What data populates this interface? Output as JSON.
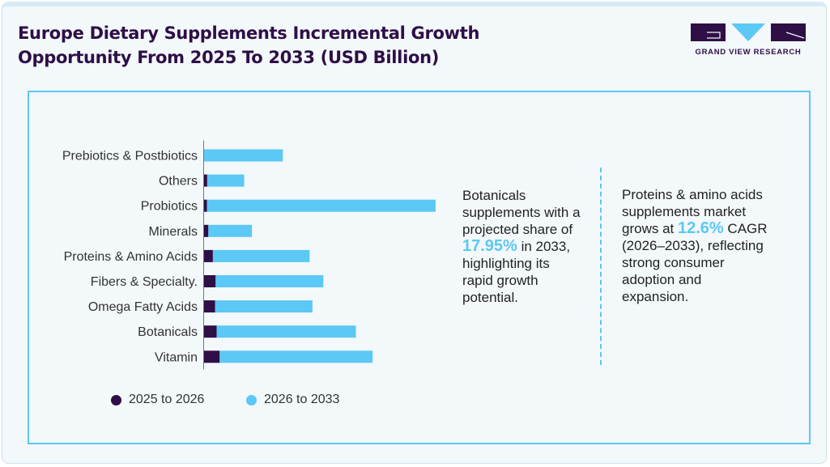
{
  "header": {
    "title_line1": "Europe Dietary Supplements Incremental Growth",
    "title_line2": "Opportunity From 2025 To 2033 (USD Billion)",
    "logo_text": "GRAND VIEW RESEARCH"
  },
  "colors": {
    "dark": "#2e0f46",
    "light": "#5bc8f5",
    "accent": "#5bc8f5"
  },
  "chart_data": {
    "type": "bar",
    "orientation": "horizontal",
    "stacked": true,
    "title": "",
    "xlabel": "",
    "ylabel": "",
    "grid": false,
    "axis_ticks_shown": false,
    "legend_position": "bottom",
    "categories": [
      "Prebiotics & Postbiotics",
      "Others",
      "Probiotics",
      "Minerals",
      "Proteins & Amino Acids",
      "Fibers & Specialty.",
      "Omega Fatty Acids",
      "Botanicals",
      "Vitamin"
    ],
    "series": [
      {
        "name": "2025 to 2026",
        "color": "#2e0f46",
        "values": [
          0,
          0.22,
          0.2,
          0.29,
          0.57,
          0.74,
          0.7,
          0.8,
          0.99
        ]
      },
      {
        "name": "2026 to 2033",
        "color": "#5bc8f5",
        "values": [
          4.89,
          2.28,
          14.12,
          2.69,
          5.97,
          6.65,
          6.02,
          8.6,
          9.44
        ]
      }
    ],
    "xlim": [
      0,
      15
    ]
  },
  "notes": {
    "left": {
      "pre": "Botanicals supplements with a projected share of ",
      "value": "17.95%",
      "post": " in 2033, highlighting its rapid growth potential."
    },
    "right": {
      "pre": "Proteins & amino acids supplements market grows at ",
      "value": "12.6%",
      "post": " CAGR (2026–2033), reflecting strong consumer adoption and expansion."
    }
  }
}
